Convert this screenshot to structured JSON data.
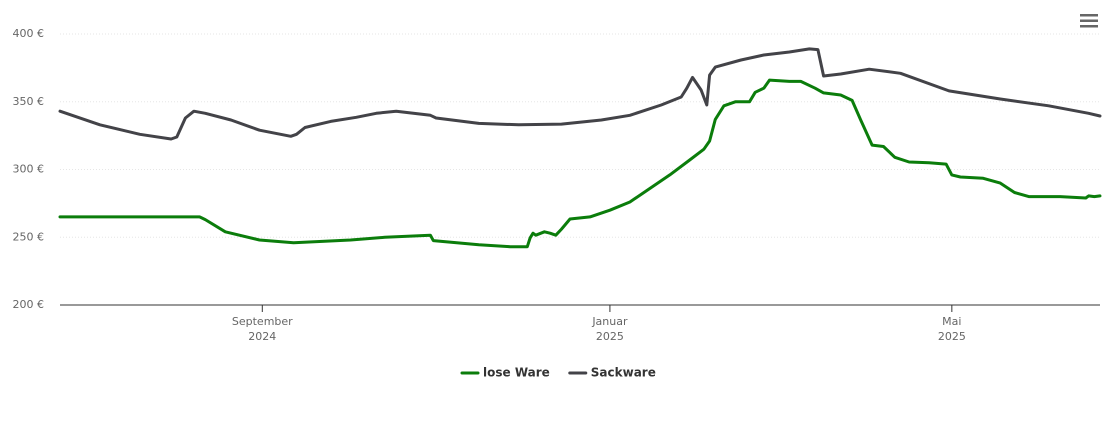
{
  "chart_data": {
    "type": "line",
    "xlim": [
      173,
      538
    ],
    "xticks": [
      {
        "value": 244,
        "label": [
          "September",
          "2024"
        ]
      },
      {
        "value": 366,
        "label": [
          "Januar",
          "2025"
        ]
      },
      {
        "value": 486,
        "label": [
          "Mai",
          "2025"
        ]
      }
    ],
    "ylim": [
      200,
      400
    ],
    "yticks": [
      {
        "value": 200,
        "label": "200 €"
      },
      {
        "value": 250,
        "label": "250 €"
      },
      {
        "value": 300,
        "label": "300 €"
      },
      {
        "value": 350,
        "label": "350 €"
      },
      {
        "value": 400,
        "label": "400 €"
      }
    ],
    "grid": true,
    "legend": "bottom",
    "series": [
      {
        "name": "lose Ware",
        "color": "#0b7d0b",
        "x": [
          173,
          222,
          224,
          231,
          243,
          255,
          275,
          287,
          303,
          304,
          320,
          331,
          337,
          338,
          339,
          340,
          343,
          345,
          347,
          349,
          352,
          359,
          366,
          373,
          380,
          387,
          394,
          399,
          401,
          403,
          406,
          410,
          415,
          417,
          420,
          422,
          429,
          433,
          438,
          441,
          447,
          451,
          454,
          458,
          462,
          466,
          471,
          478,
          484,
          486,
          489,
          497,
          503,
          508,
          513,
          524,
          533,
          534,
          536,
          538
        ],
        "values": [
          265,
          265,
          263,
          254,
          248,
          246,
          248,
          250,
          251.5,
          247.5,
          244.5,
          243,
          243,
          249.5,
          253,
          251.5,
          254,
          253,
          251.5,
          256,
          263.5,
          265,
          270,
          276,
          286,
          296,
          307,
          315,
          321,
          337,
          347,
          350,
          350,
          357,
          360,
          366,
          365,
          365,
          360,
          356.5,
          355,
          351,
          336.5,
          318,
          317,
          309,
          305.5,
          305,
          304,
          296,
          294.5,
          293.5,
          290,
          283,
          280,
          280,
          279,
          280.5,
          280,
          280.5
        ]
      },
      {
        "name": "Sackware",
        "color": "#434348",
        "x": [
          173,
          187,
          201,
          212,
          214,
          217,
          220,
          224,
          233,
          243,
          254,
          256,
          259,
          268,
          277,
          284,
          291,
          303,
          305,
          320,
          334,
          349,
          363,
          373,
          384,
          391,
          393,
          395,
          398,
          400,
          401,
          403,
          412,
          420,
          429,
          436,
          439,
          441,
          447,
          457,
          468,
          485,
          503,
          520,
          534,
          538
        ],
        "values": [
          343,
          333,
          326,
          322.5,
          324,
          338,
          343,
          341.5,
          336.5,
          329,
          324.5,
          326,
          331,
          335.5,
          338.5,
          341.5,
          343,
          340,
          338,
          334,
          333,
          333.5,
          336.5,
          340,
          347.6,
          353.5,
          360,
          368,
          358.7,
          347.6,
          369.7,
          375.6,
          380.8,
          384.5,
          386.7,
          389,
          388.5,
          369,
          370.5,
          374,
          371,
          358,
          352,
          347,
          341.5,
          339.5
        ]
      }
    ]
  }
}
